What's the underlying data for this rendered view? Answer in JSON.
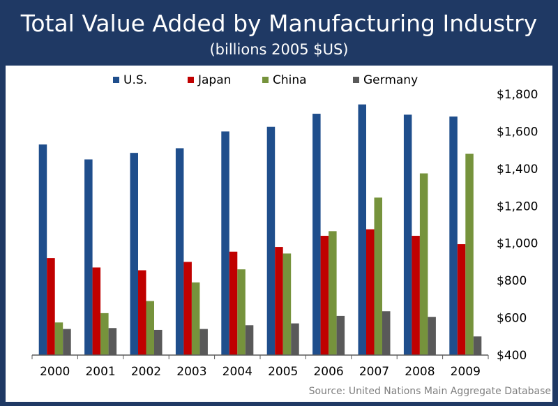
{
  "header": {
    "title": "Total Value Added by Manufacturing Industry",
    "subtitle": "(billions 2005 $US)"
  },
  "footer": {
    "source": "Source:  United Nations Main Aggregate Database"
  },
  "colors": {
    "header_bg": "#1f3964",
    "us": "#1f4e8c",
    "japan": "#c00000",
    "china": "#76933c",
    "germany": "#595959",
    "axis": "#595959",
    "text": "#000000"
  },
  "chart_data": {
    "type": "bar",
    "title": "Total Value Added by Manufacturing Industry",
    "subtitle": "(billions 2005 $US)",
    "xlabel": "",
    "ylabel": "",
    "categories": [
      "2000",
      "2001",
      "2002",
      "2003",
      "2004",
      "2005",
      "2006",
      "2007",
      "2008",
      "2009"
    ],
    "series": [
      {
        "name": "U.S.",
        "color": "#1f4e8c",
        "values": [
          1530,
          1450,
          1485,
          1510,
          1600,
          1625,
          1695,
          1745,
          1690,
          1680
        ]
      },
      {
        "name": "Japan",
        "color": "#c00000",
        "values": [
          920,
          870,
          855,
          900,
          955,
          980,
          1040,
          1075,
          1040,
          995
        ]
      },
      {
        "name": "China",
        "color": "#76933c",
        "values": [
          575,
          625,
          690,
          790,
          860,
          945,
          1065,
          1245,
          1375,
          1480
        ]
      },
      {
        "name": "Germany",
        "color": "#595959",
        "values": [
          540,
          545,
          535,
          540,
          560,
          570,
          610,
          635,
          605,
          500
        ]
      }
    ],
    "ylim": [
      400,
      1800
    ],
    "yticks": [
      400,
      600,
      800,
      1000,
      1200,
      1400,
      1600,
      1800
    ],
    "ytick_labels": [
      "$400",
      "$600",
      "$800",
      "$1,000",
      "$1,200",
      "$1,400",
      "$1,600",
      "$1,800"
    ],
    "y_axis_side": "right",
    "legend": {
      "position": "top-center",
      "entries": [
        "U.S.",
        "Japan",
        "China",
        "Germany"
      ]
    },
    "grid": false
  }
}
